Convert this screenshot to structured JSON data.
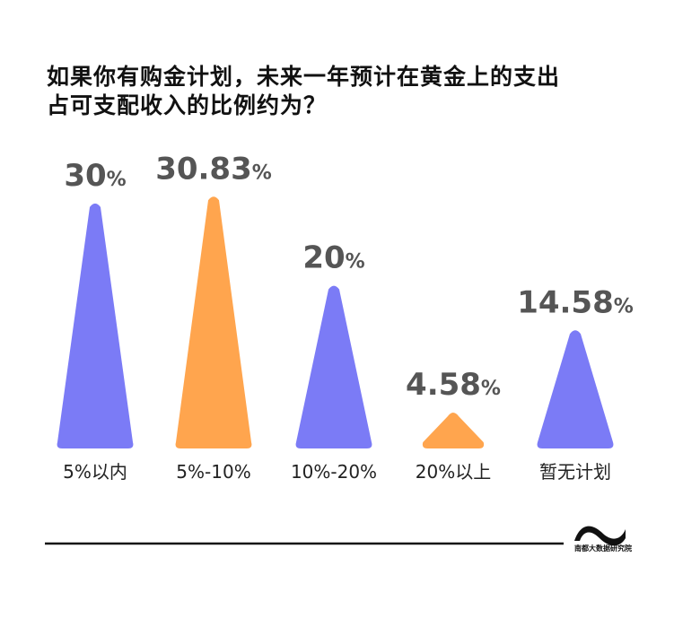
{
  "chart_data": {
    "type": "bar",
    "title_lines": [
      "如果你有购金计划，未来一年预计在黄金上的支出",
      "占可支配收入的比例约为？"
    ],
    "categories": [
      "5%以内",
      "5%-10%",
      "10%-20%",
      "20%以上",
      "暂无计划"
    ],
    "values": [
      30,
      30.83,
      20,
      4.58,
      14.58
    ],
    "value_labels": [
      "30",
      "30.83",
      "20",
      "4.58",
      "14.58"
    ],
    "unit": "%",
    "bar_colors": [
      "#7b7bf6",
      "#ffa54e",
      "#7b7bf6",
      "#ffa54e",
      "#7b7bf6"
    ],
    "bar_shape": "triangle",
    "grid": false
  },
  "logo": {
    "text": "南都大数据研究院"
  }
}
